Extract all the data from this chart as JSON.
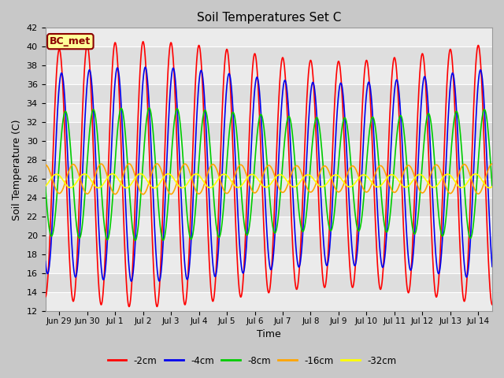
{
  "title": "Soil Temperatures Set C",
  "xlabel": "Time",
  "ylabel": "Soil Temperature (C)",
  "ylim": [
    12,
    42
  ],
  "annotation": "BC_met",
  "annotation_color": "#8B0000",
  "annotation_bg": "#FFFF99",
  "fig_bg": "#C8C8C8",
  "plot_bg": "#E0E0E0",
  "series": [
    {
      "label": "-2cm",
      "color": "#FF0000",
      "amplitude": 13.0,
      "mean": 26.5,
      "phase_days": 0.0
    },
    {
      "label": "-4cm",
      "color": "#0000EE",
      "amplitude": 10.5,
      "mean": 26.5,
      "phase_days": 0.08
    },
    {
      "label": "-8cm",
      "color": "#00CC00",
      "amplitude": 6.5,
      "mean": 26.5,
      "phase_days": 0.22
    },
    {
      "label": "-16cm",
      "color": "#FFA500",
      "amplitude": 1.5,
      "mean": 26.0,
      "phase_days": 0.5
    },
    {
      "label": "-32cm",
      "color": "#FFFF00",
      "amplitude": 0.7,
      "mean": 25.8,
      "phase_days": 0.9
    }
  ],
  "start_day": 0.0,
  "end_day": 16.0,
  "n_points": 2000,
  "xtick_positions": [
    0.5,
    1.5,
    2.5,
    3.5,
    4.5,
    5.5,
    6.5,
    7.5,
    8.5,
    9.5,
    10.5,
    11.5,
    12.5,
    13.5,
    14.5,
    15.5
  ],
  "xtick_labels": [
    "Jun 29",
    "Jun 30",
    "Jul 1",
    "Jul 2",
    "Jul 3",
    "Jul 4",
    "Jul 5",
    "Jul 6",
    "Jul 7",
    "Jul 8",
    "Jul 9",
    "Jul 10",
    "Jul 11",
    "Jul 12",
    "Jul 13",
    "Jul 14"
  ],
  "yticks": [
    12,
    14,
    16,
    18,
    20,
    22,
    24,
    26,
    28,
    30,
    32,
    34,
    36,
    38,
    40,
    42
  ],
  "linewidth": 1.2,
  "grid_color": "#FFFFFF",
  "band_colors": [
    "#E8E8E8",
    "#D8D8D8"
  ]
}
